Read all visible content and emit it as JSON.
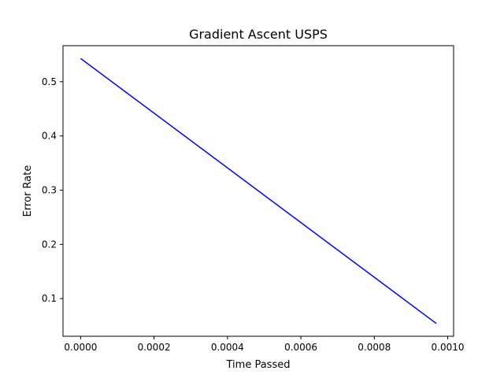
{
  "chart_data": {
    "type": "line",
    "title": "Gradient Ascent USPS",
    "xlabel": "Time Passed",
    "ylabel": "Error Rate",
    "xlim": [
      -4.8e-05,
      0.001016
    ],
    "ylim": [
      0.0305,
      0.5665
    ],
    "x_ticks": [
      0.0,
      0.0002,
      0.0004,
      0.0006,
      0.0008,
      0.001
    ],
    "x_tick_labels": [
      "0.0000",
      "0.0002",
      "0.0004",
      "0.0006",
      "0.0008",
      "0.0010"
    ],
    "y_ticks": [
      0.1,
      0.2,
      0.3,
      0.4,
      0.5
    ],
    "y_tick_labels": [
      "0.1",
      "0.2",
      "0.3",
      "0.4",
      "0.5"
    ],
    "grid": false,
    "legend": "none",
    "series": [
      {
        "color": "#0000ff",
        "x": [
          0.0,
          0.000969
        ],
        "y": [
          0.543,
          0.054
        ]
      }
    ]
  }
}
